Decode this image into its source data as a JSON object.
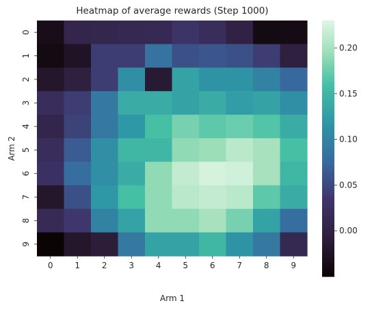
{
  "chart_data": {
    "type": "heatmap",
    "title": "Heatmap of average rewards (Step 1000)",
    "xlabel": "Arm 1",
    "ylabel": "Arm 2",
    "x_categories": [
      "0",
      "1",
      "2",
      "3",
      "4",
      "5",
      "6",
      "7",
      "8",
      "9"
    ],
    "y_categories": [
      "0",
      "1",
      "2",
      "3",
      "4",
      "5",
      "6",
      "7",
      "8",
      "9"
    ],
    "colormap": "mako",
    "vmin": -0.05,
    "vmax": 0.23,
    "colorbar_ticks": [
      0.2,
      0.15,
      0.1,
      0.05,
      0.0
    ],
    "colorbar_tick_labels": [
      "0.20",
      "0.15",
      "0.10",
      "0.05",
      "0.00"
    ],
    "values": [
      [
        -0.035,
        0.005,
        0.008,
        0.01,
        0.012,
        0.03,
        0.02,
        0.0,
        -0.04,
        -0.038
      ],
      [
        -0.04,
        -0.025,
        0.04,
        0.04,
        0.085,
        0.055,
        0.06,
        0.055,
        0.04,
        -0.005
      ],
      [
        -0.02,
        -0.005,
        0.04,
        0.11,
        -0.015,
        0.13,
        0.115,
        0.115,
        0.1,
        0.075
      ],
      [
        0.02,
        0.04,
        0.09,
        0.14,
        0.14,
        0.13,
        0.14,
        0.125,
        0.13,
        0.11
      ],
      [
        0.005,
        0.045,
        0.09,
        0.12,
        0.16,
        0.18,
        0.17,
        0.175,
        0.165,
        0.14
      ],
      [
        0.02,
        0.065,
        0.11,
        0.15,
        0.15,
        0.19,
        0.195,
        0.21,
        0.2,
        0.16
      ],
      [
        0.025,
        0.08,
        0.11,
        0.14,
        0.19,
        0.215,
        0.225,
        0.222,
        0.2,
        0.15
      ],
      [
        -0.02,
        0.055,
        0.12,
        0.16,
        0.19,
        0.21,
        0.215,
        0.21,
        0.17,
        0.14
      ],
      [
        0.015,
        0.035,
        0.1,
        0.13,
        0.19,
        0.19,
        0.2,
        0.18,
        0.13,
        0.08
      ],
      [
        -0.05,
        -0.02,
        -0.01,
        0.09,
        0.13,
        0.13,
        0.15,
        0.115,
        0.09,
        0.01
      ]
    ]
  }
}
